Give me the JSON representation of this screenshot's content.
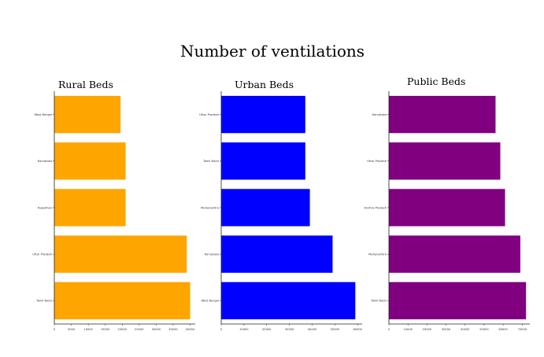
{
  "title": "Number of ventilations",
  "chart_data": [
    {
      "type": "bar",
      "orientation": "horizontal",
      "title": "Rural Beds",
      "color": "#FFA500",
      "categories": [
        "Tamil Nadu",
        "Uttar Pradesh",
        "Rajasthan",
        "Karnataka",
        "West Bengal"
      ],
      "values": [
        40000,
        39000,
        21000,
        21000,
        19500
      ],
      "xticks": [
        0,
        5000,
        10000,
        15000,
        20000,
        25000,
        30000,
        35000,
        40000
      ],
      "xlim": [
        0,
        41500
      ]
    },
    {
      "type": "bar",
      "orientation": "horizontal",
      "title": "Urban Beds",
      "color": "#0000FF",
      "categories": [
        "West Bengal",
        "Karnataka",
        "Maharashtra",
        "Tamil Nadu",
        "Uttar Pradesh"
      ],
      "values": [
        59000,
        49000,
        39000,
        37000,
        37000
      ],
      "xticks": [
        0,
        10000,
        20000,
        30000,
        40000,
        50000,
        60000
      ],
      "xlim": [
        0,
        62000
      ]
    },
    {
      "type": "bar",
      "orientation": "horizontal",
      "title": "Public Beds",
      "color": "#800080",
      "categories": [
        "Tamil Nadu",
        "Maharashtra",
        "Andhra Pradesh",
        "Uttar Pradesh",
        "Karnataka"
      ],
      "values": [
        72000,
        69000,
        61000,
        58500,
        56000
      ],
      "xticks": [
        0,
        10000,
        20000,
        30000,
        40000,
        50000,
        60000,
        70000
      ],
      "xlim": [
        0,
        74000
      ]
    }
  ]
}
